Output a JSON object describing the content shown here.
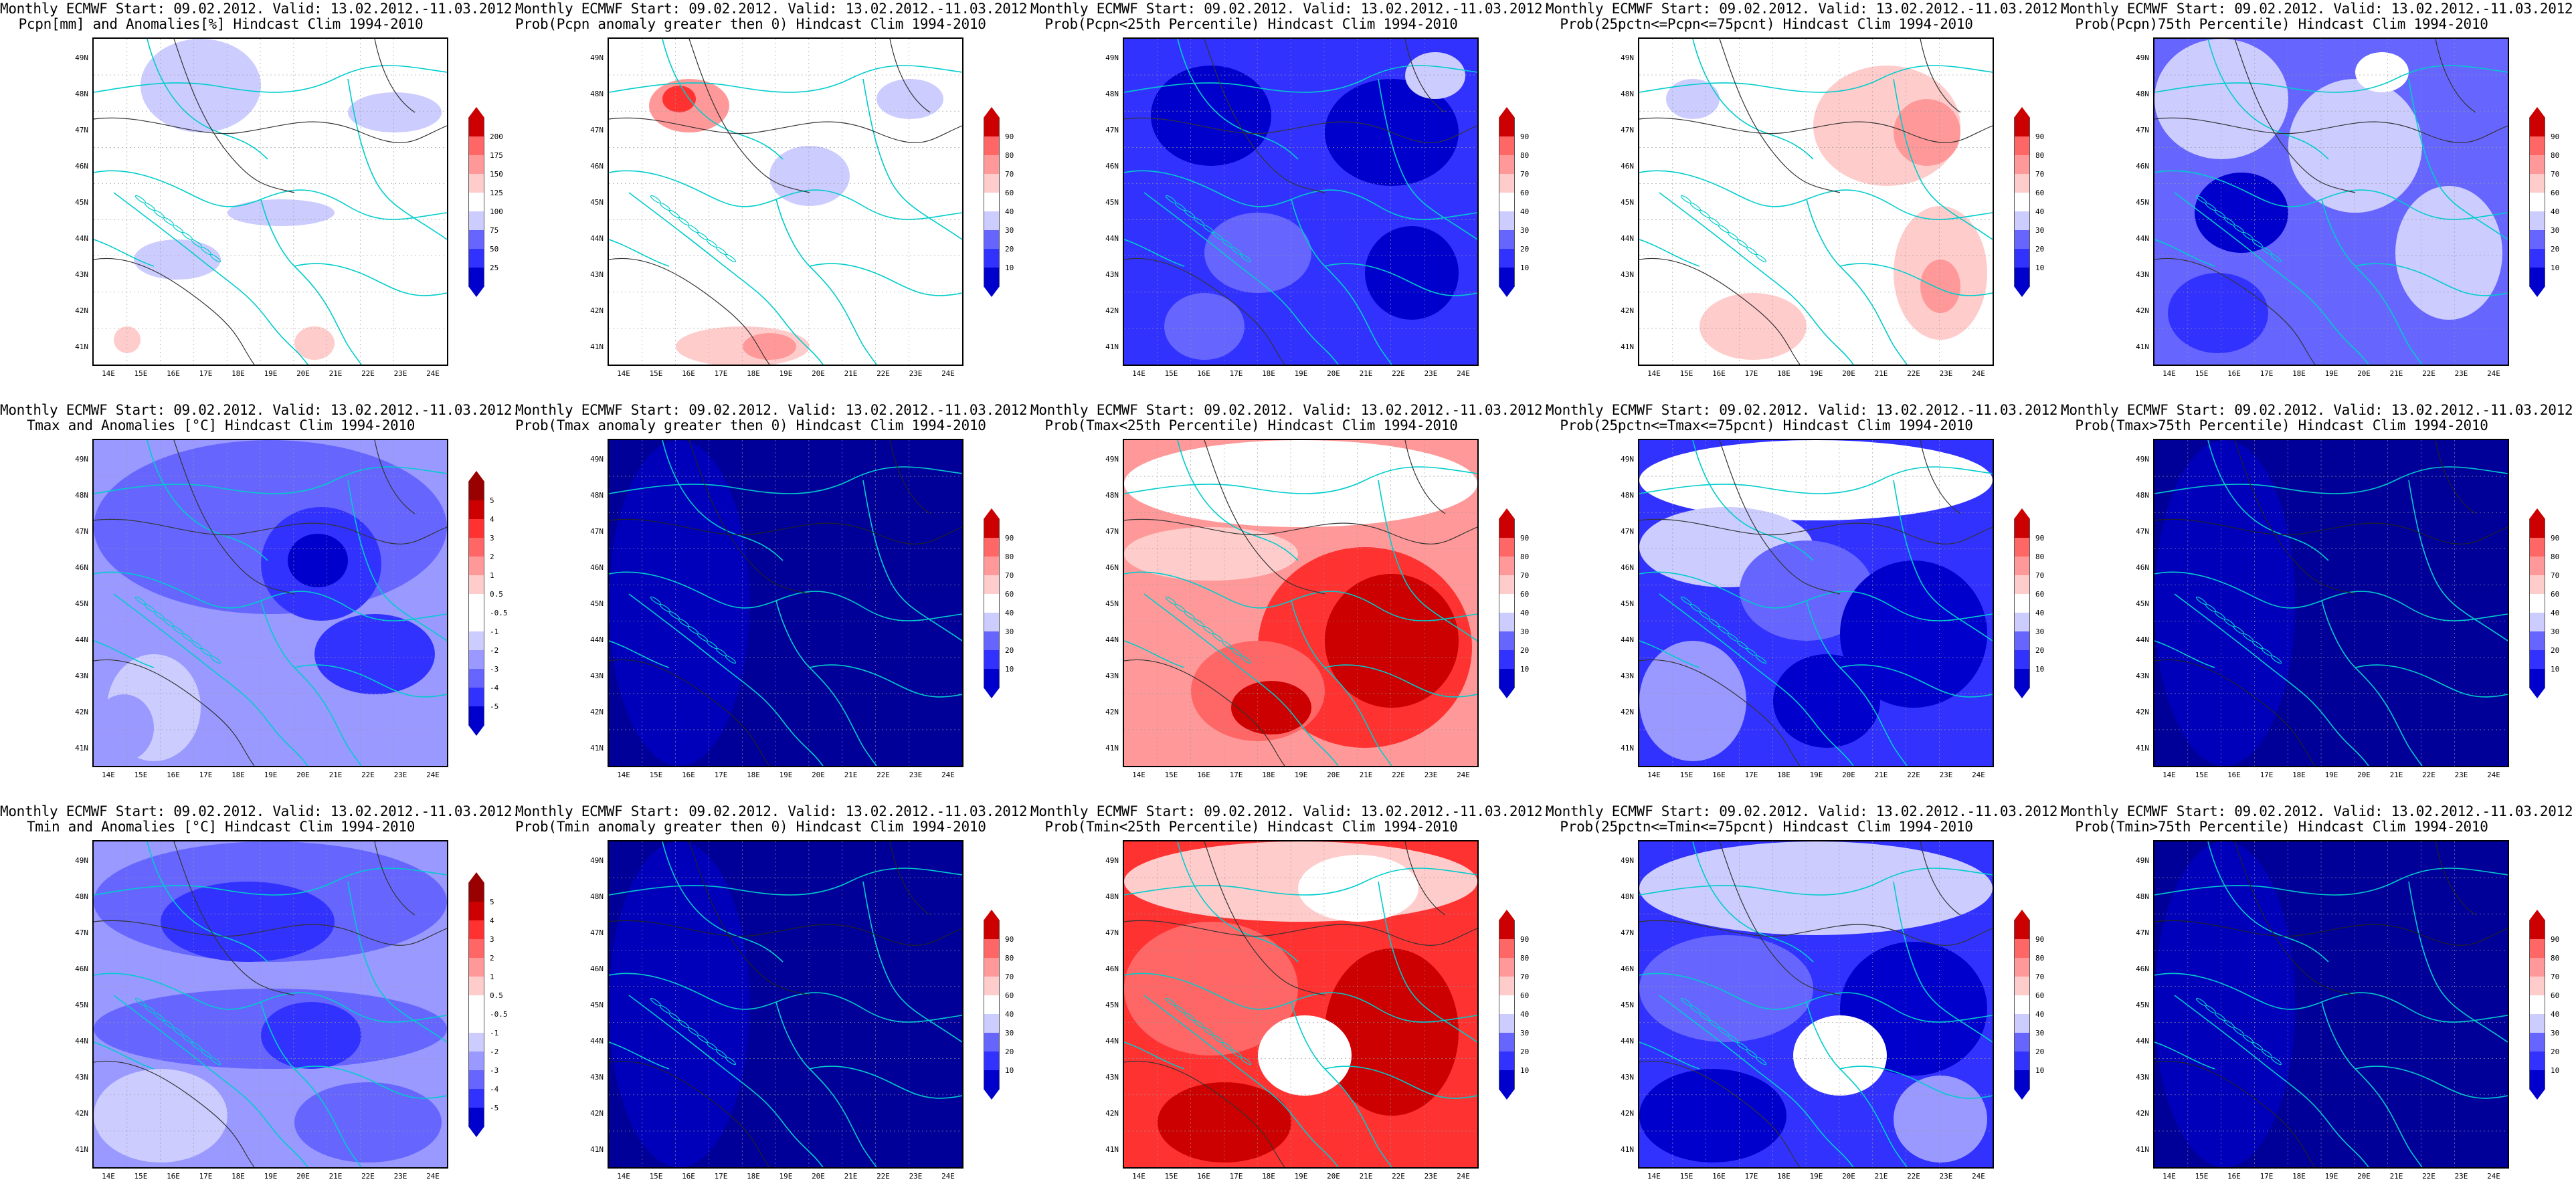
{
  "header_line": "Monthly ECMWF Start: 09.02.2012. Valid: 13.02.2012.-11.03.2012.",
  "lat_labels": [
    "49N",
    "48N",
    "47N",
    "46N",
    "45N",
    "44N",
    "43N",
    "42N",
    "41N"
  ],
  "lon_labels": [
    "14E",
    "15E",
    "16E",
    "17E",
    "18E",
    "19E",
    "20E",
    "21E",
    "22E",
    "23E",
    "24E"
  ],
  "colors": {
    "blue_dark": "#0000cc",
    "blue": "#3232ff",
    "blue_mid": "#6666ff",
    "blue_light": "#9999ff",
    "blue_pale": "#ccccff",
    "white": "#ffffff",
    "red_pale": "#ffcccc",
    "red_light": "#ff9999",
    "red_mid": "#ff6666",
    "red": "#ff3232",
    "red_dark": "#cc0000",
    "navy_fill": "#000099",
    "border_cyan": "#00cccc"
  },
  "scales": {
    "pcpn": [
      "25",
      "50",
      "75",
      "100",
      "125",
      "150",
      "175",
      "200"
    ],
    "temp": [
      "-5",
      "-4",
      "-3",
      "-2",
      "-1",
      "-0.5",
      "0.5",
      "1",
      "2",
      "3",
      "4",
      "5"
    ],
    "prob": [
      "10",
      "20",
      "30",
      "40",
      "60",
      "70",
      "80",
      "90"
    ]
  },
  "panels": [
    {
      "id": "r1c1",
      "row": 0,
      "col": 0,
      "subtitle": "Pcpn[mm] and Anomalies[%] Hindcast Clim 1994-2010",
      "scale": "pcpn",
      "field": "pcpn_anom"
    },
    {
      "id": "r1c2",
      "row": 0,
      "col": 1,
      "subtitle": "Prob(Pcpn anomaly greater then 0) Hindcast Clim 1994-2010",
      "scale": "prob",
      "field": "pcpn_pos"
    },
    {
      "id": "r1c3",
      "row": 0,
      "col": 2,
      "subtitle": "Prob(Pcpn<25th Percentile) Hindcast Clim 1994-2010",
      "scale": "prob",
      "field": "pcpn_low"
    },
    {
      "id": "r1c4",
      "row": 0,
      "col": 3,
      "subtitle": "Prob(25pctn<=Pcpn<=75pcnt) Hindcast Clim 1994-2010",
      "scale": "prob",
      "field": "pcpn_mid"
    },
    {
      "id": "r1c5",
      "row": 0,
      "col": 4,
      "subtitle": "Prob(Pcpn)75th Percentile) Hindcast Clim 1994-2010",
      "scale": "prob",
      "field": "pcpn_high"
    },
    {
      "id": "r2c1",
      "row": 1,
      "col": 0,
      "subtitle": "Tmax and Anomalies [°C] Hindcast Clim 1994-2010",
      "scale": "temp",
      "field": "tmax_anom"
    },
    {
      "id": "r2c2",
      "row": 1,
      "col": 1,
      "subtitle": "Prob(Tmax anomaly greater then 0) Hindcast Clim 1994-2010",
      "scale": "prob",
      "field": "navy"
    },
    {
      "id": "r2c3",
      "row": 1,
      "col": 2,
      "subtitle": "Prob(Tmax<25th Percentile) Hindcast Clim 1994-2010",
      "scale": "prob",
      "field": "tmax_low"
    },
    {
      "id": "r2c4",
      "row": 1,
      "col": 3,
      "subtitle": "Prob(25pctn<=Tmax<=75pcnt) Hindcast Clim 1994-2010",
      "scale": "prob",
      "field": "tmax_mid"
    },
    {
      "id": "r2c5",
      "row": 1,
      "col": 4,
      "subtitle": "Prob(Tmax>75th Percentile) Hindcast Clim 1994-2010",
      "scale": "prob",
      "field": "navy"
    },
    {
      "id": "r3c1",
      "row": 2,
      "col": 0,
      "subtitle": "Tmin and Anomalies [°C] Hindcast Clim 1994-2010",
      "scale": "temp",
      "field": "tmin_anom"
    },
    {
      "id": "r3c2",
      "row": 2,
      "col": 1,
      "subtitle": "Prob(Tmin anomaly greater then 0) Hindcast Clim 1994-2010",
      "scale": "prob",
      "field": "navy"
    },
    {
      "id": "r3c3",
      "row": 2,
      "col": 2,
      "subtitle": "Prob(Tmin<25th Percentile) Hindcast Clim 1994-2010",
      "scale": "prob",
      "field": "tmin_low"
    },
    {
      "id": "r3c4",
      "row": 2,
      "col": 3,
      "subtitle": "Prob(25pctn<=Tmin<=75pcnt) Hindcast Clim 1994-2010",
      "scale": "prob",
      "field": "tmin_mid"
    },
    {
      "id": "r3c5",
      "row": 2,
      "col": 4,
      "subtitle": "Prob(Tmin>75th Percentile) Hindcast Clim 1994-2010",
      "scale": "prob",
      "field": "navy"
    }
  ]
}
